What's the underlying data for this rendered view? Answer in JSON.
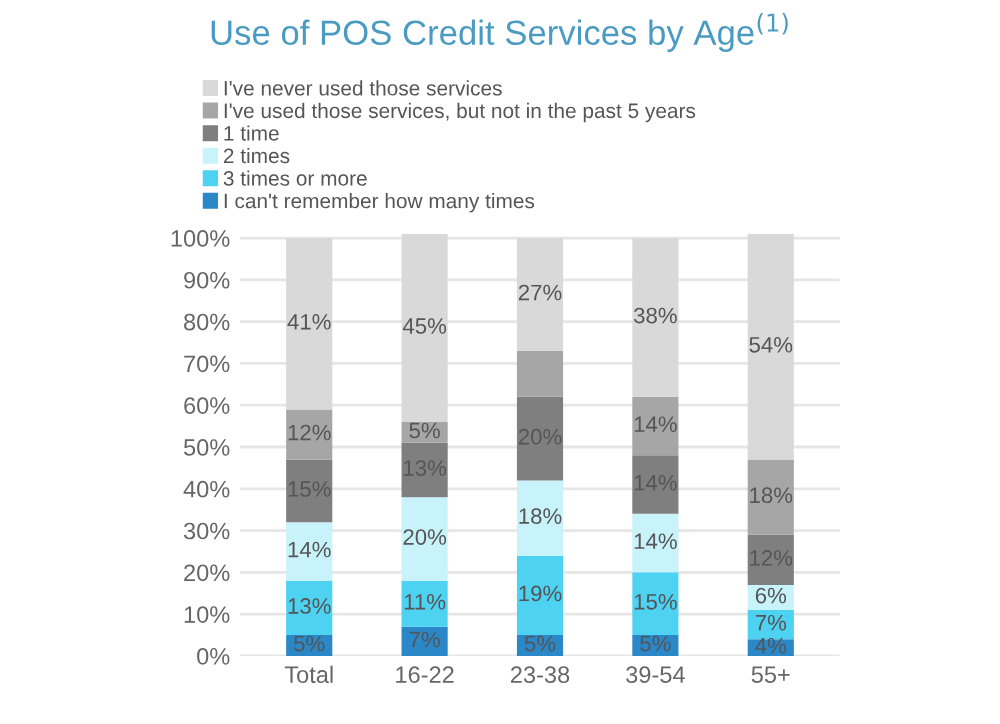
{
  "chart_data": {
    "type": "bar",
    "stacked": true,
    "title": "Use of POS Credit Services by Age$^{(1)}$",
    "categories": [
      "Total",
      "16-22",
      "23-38",
      "39-54",
      "55+"
    ],
    "series": [
      {
        "name": "I can't remember how many times",
        "color": "#2a87c8",
        "values": [
          5,
          7,
          5,
          5,
          4
        ],
        "value_labels": [
          "5%",
          "7%",
          "5%",
          "5%",
          "4%"
        ]
      },
      {
        "name": "3 times or more",
        "color": "#4dd2f2",
        "values": [
          13,
          11,
          19,
          15,
          7
        ],
        "value_labels": [
          "13%",
          "11%",
          "19%",
          "15%",
          "7%"
        ]
      },
      {
        "name": "2 times",
        "color": "#c9f3fb",
        "values": [
          14,
          20,
          18,
          14,
          6
        ],
        "value_labels": [
          "14%",
          "20%",
          "18%",
          "14%",
          "6%"
        ]
      },
      {
        "name": "1 time",
        "color": "#7f7f7f",
        "values": [
          15,
          13,
          20,
          14,
          12
        ],
        "value_labels": [
          "15%",
          "13%",
          "20%",
          "14%",
          "12%"
        ]
      },
      {
        "name": "I've used those services, but not in the past 5 years",
        "color": "#a6a6a6",
        "values": [
          12,
          5,
          11,
          14,
          18
        ],
        "value_labels": [
          "12%",
          "5%",
          null,
          "14%",
          "18%"
        ]
      },
      {
        "name": "I've never used those services",
        "color": "#d9d9d9",
        "values": [
          41,
          45,
          27,
          38,
          54
        ],
        "value_labels": [
          "41%",
          "45%",
          "27%",
          "38%",
          "54%"
        ]
      }
    ],
    "ylim": [
      0,
      101
    ],
    "yticks": [
      {
        "value": 0,
        "label": "0%"
      },
      {
        "value": 10,
        "label": "10%"
      },
      {
        "value": 20,
        "label": "20%"
      },
      {
        "value": 30,
        "label": "30%"
      },
      {
        "value": 40,
        "label": "40%"
      },
      {
        "value": 50,
        "label": "50%"
      },
      {
        "value": 60,
        "label": "60%"
      },
      {
        "value": 70,
        "label": "70%"
      },
      {
        "value": 80,
        "label": "80%"
      },
      {
        "value": 90,
        "label": "90%"
      },
      {
        "value": 100,
        "label": "100%"
      }
    ],
    "grid": "y",
    "legend": "top"
  }
}
